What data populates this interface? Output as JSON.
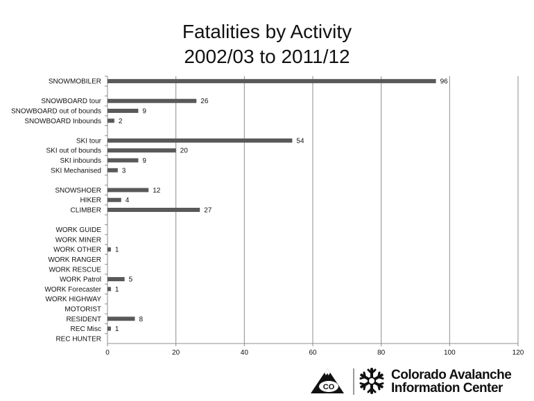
{
  "chart_data": {
    "type": "bar",
    "orientation": "horizontal",
    "title": [
      "Fatalities by Activity",
      "2002/03 to 2011/12"
    ],
    "categories": [
      "SNOWMOBILER",
      "",
      "SNOWBOARD tour",
      "SNOWBOARD out of bounds",
      "SNOWBOARD Inbounds",
      "",
      "SKI tour",
      "SKI out of bounds",
      "SKI inbounds",
      "SKI Mechanised",
      "",
      "SNOWSHOER",
      "HIKER",
      "CLIMBER",
      "",
      "WORK GUIDE",
      "WORK MINER",
      "WORK OTHER",
      "WORK RANGER",
      "WORK RESCUE",
      "WORK Patrol",
      "WORK Forecaster",
      "WORK HIGHWAY",
      "MOTORIST",
      "RESIDENT",
      "REC Misc",
      "REC HUNTER"
    ],
    "values": [
      96,
      null,
      26,
      9,
      2,
      null,
      54,
      20,
      9,
      3,
      null,
      12,
      4,
      27,
      null,
      null,
      null,
      1,
      null,
      null,
      5,
      1,
      null,
      null,
      8,
      1,
      null
    ],
    "xlim": [
      0,
      120
    ],
    "xticks": [
      0,
      20,
      40,
      60,
      80,
      100,
      120
    ],
    "grid": "vertical",
    "bar_color": "#595959",
    "data_labels": true
  },
  "logo": {
    "emblem_text": "CO",
    "line1": "Colorado Avalanche",
    "line2": "Information Center"
  }
}
